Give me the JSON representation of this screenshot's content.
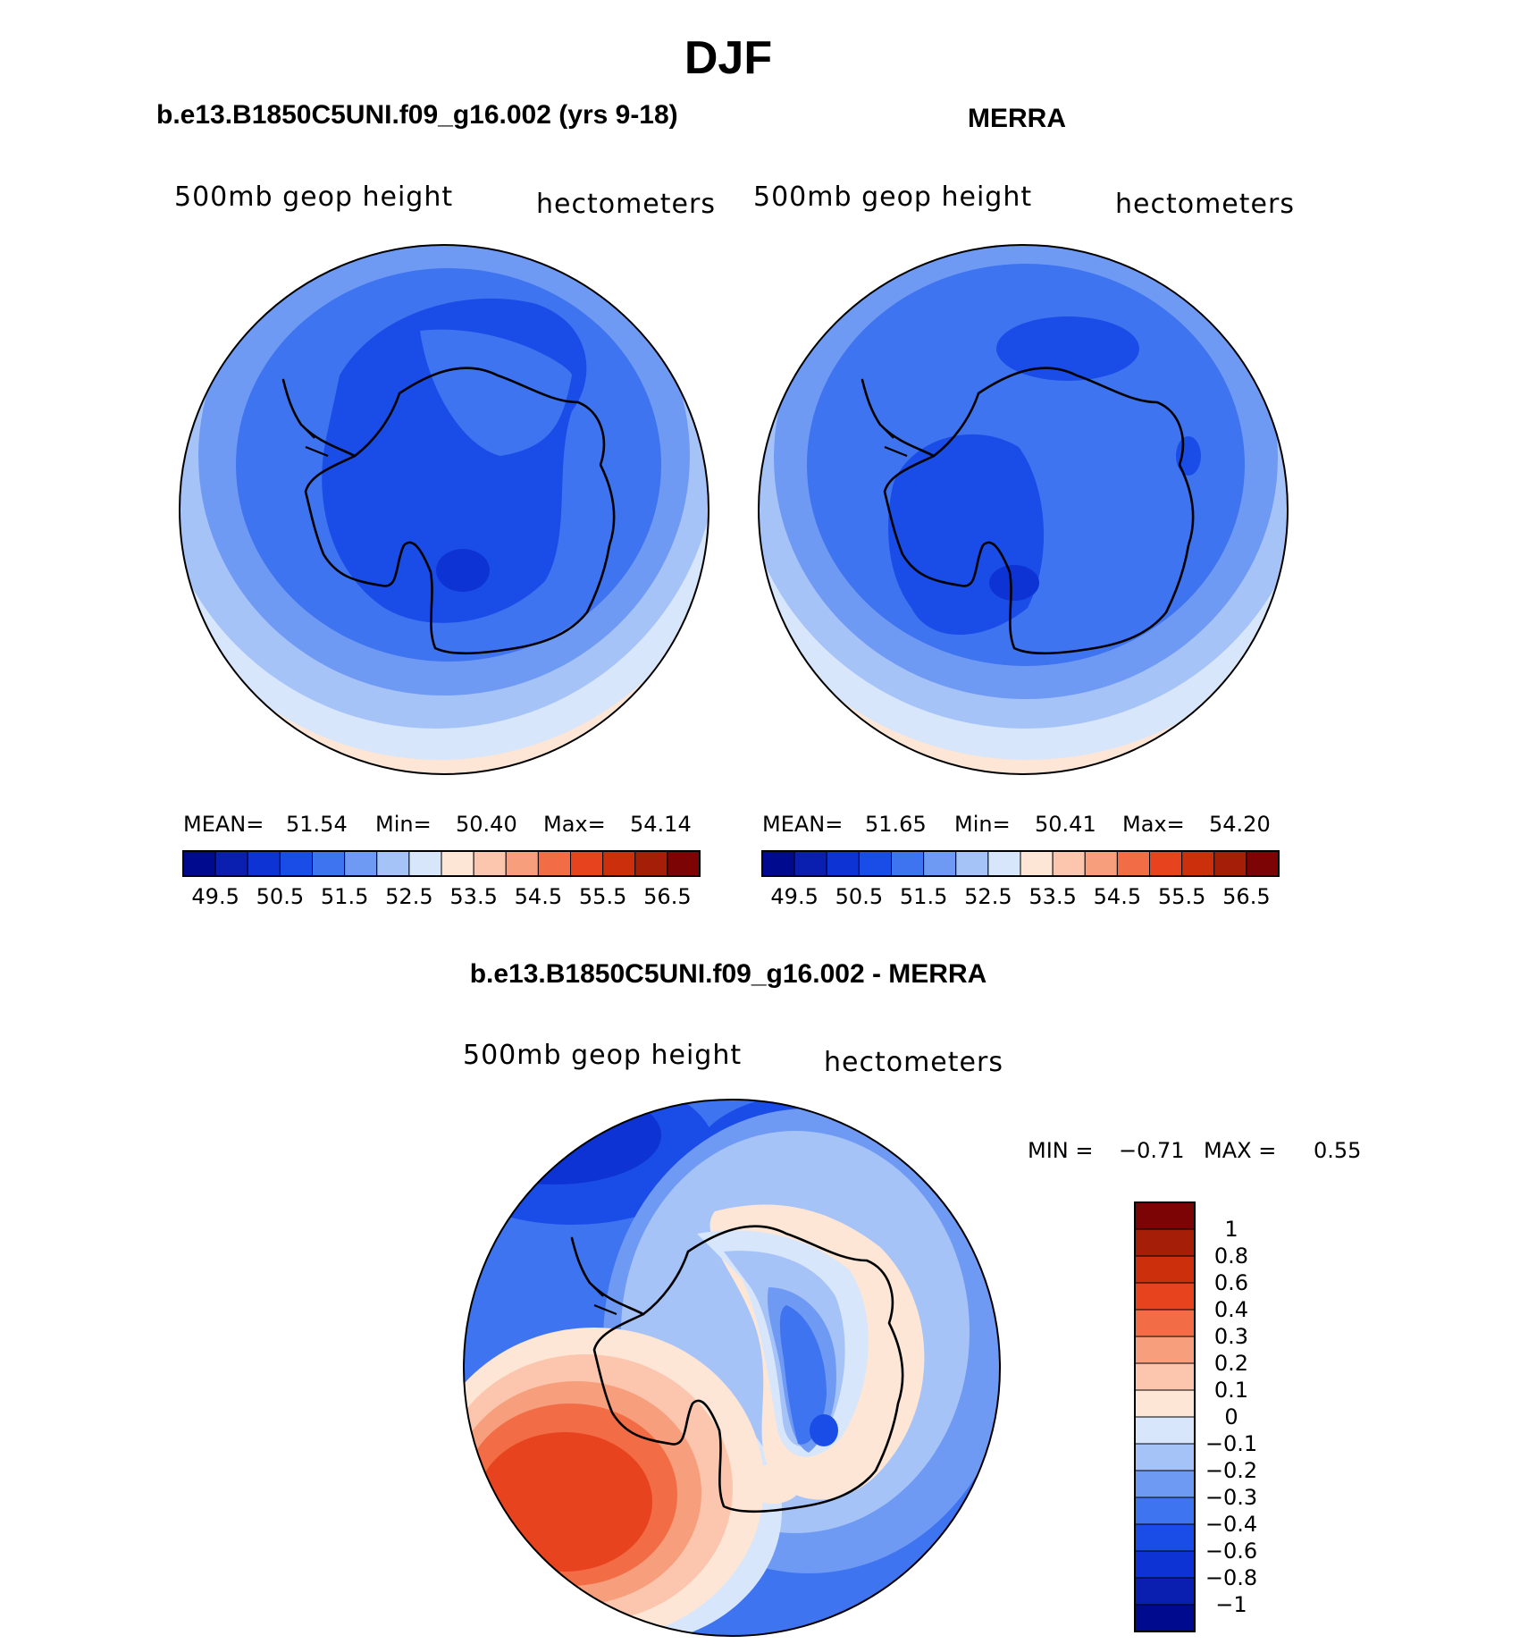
{
  "title": "DJF",
  "panels": [
    {
      "id": "model",
      "title": "b.e13.B1850C5UNI.f09_g16.002 (yrs 9-18)",
      "variable": "500mb geop height",
      "units": "hectometers",
      "stats": {
        "mean_label": "MEAN=",
        "mean": "51.54",
        "min_label": "Min=",
        "min": "50.40",
        "max_label": "Max=",
        "max": "54.14"
      }
    },
    {
      "id": "obs",
      "title": "MERRA",
      "variable": "500mb geop height",
      "units": "hectometers",
      "stats": {
        "mean_label": "MEAN=",
        "mean": "51.65",
        "min_label": "Min=",
        "min": "50.41",
        "max_label": "Max=",
        "max": "54.20"
      }
    },
    {
      "id": "diff",
      "title": "b.e13.B1850C5UNI.f09_g16.002 - MERRA",
      "variable": "500mb geop height",
      "units": "hectometers",
      "stats": {
        "min_label": "MIN =",
        "min": "−0.71",
        "max_label": "MAX =",
        "max": "0.55"
      }
    }
  ],
  "chart_data": [
    {
      "type": "heatmap",
      "projection": "south-polar-stereographic",
      "title": "b.e13.B1850C5UNI.f09_g16.002 (yrs 9-18)",
      "field": "500mb geop height",
      "units": "hectometers",
      "mean": 51.54,
      "min": 50.4,
      "max": 54.14,
      "levels": [
        49.5,
        50.5,
        51.5,
        52.5,
        53.5,
        54.5,
        55.5,
        56.5
      ],
      "colorbar_labels": [
        "49.5",
        "50.5",
        "51.5",
        "52.5",
        "53.5",
        "54.5",
        "55.5",
        "56.5"
      ],
      "colorbar_colors": [
        "#000a8f",
        "#0a1fb0",
        "#0d33d4",
        "#1a4de8",
        "#3f74f0",
        "#6f9af4",
        "#a6c3f8",
        "#d7e6fb",
        "#fde6d6",
        "#fbc6ad",
        "#f79e7d",
        "#f26d45",
        "#e8431f",
        "#cc2f0c",
        "#a51f08",
        "#7d0404"
      ]
    },
    {
      "type": "heatmap",
      "projection": "south-polar-stereographic",
      "title": "MERRA",
      "field": "500mb geop height",
      "units": "hectometers",
      "mean": 51.65,
      "min": 50.41,
      "max": 54.2,
      "levels": [
        49.5,
        50.5,
        51.5,
        52.5,
        53.5,
        54.5,
        55.5,
        56.5
      ],
      "colorbar_labels": [
        "49.5",
        "50.5",
        "51.5",
        "52.5",
        "53.5",
        "54.5",
        "55.5",
        "56.5"
      ],
      "colorbar_colors": [
        "#000a8f",
        "#0a1fb0",
        "#0d33d4",
        "#1a4de8",
        "#3f74f0",
        "#6f9af4",
        "#a6c3f8",
        "#d7e6fb",
        "#fde6d6",
        "#fbc6ad",
        "#f79e7d",
        "#f26d45",
        "#e8431f",
        "#cc2f0c",
        "#a51f08",
        "#7d0404"
      ]
    },
    {
      "type": "heatmap",
      "projection": "south-polar-stereographic",
      "title": "b.e13.B1850C5UNI.f09_g16.002 - MERRA",
      "field": "500mb geop height",
      "units": "hectometers",
      "min": -0.71,
      "max": 0.55,
      "levels": [
        1,
        0.8,
        0.6,
        0.4,
        0.3,
        0.2,
        0.1,
        0,
        -0.1,
        -0.2,
        -0.3,
        -0.4,
        -0.6,
        -0.8,
        -1
      ],
      "colorbar_labels": [
        "1",
        "0.8",
        "0.6",
        "0.4",
        "0.3",
        "0.2",
        "0.1",
        "0",
        "−0.1",
        "−0.2",
        "−0.3",
        "−0.4",
        "−0.6",
        "−0.8",
        "−1"
      ],
      "colorbar_colors": [
        "#7d0404",
        "#a51f08",
        "#cc2f0c",
        "#e8431f",
        "#f26d45",
        "#f79e7d",
        "#fbc6ad",
        "#fde6d6",
        "#d7e6fb",
        "#a6c3f8",
        "#6f9af4",
        "#3f74f0",
        "#1a4de8",
        "#0d33d4",
        "#0a1fb0",
        "#000a8f"
      ]
    }
  ]
}
